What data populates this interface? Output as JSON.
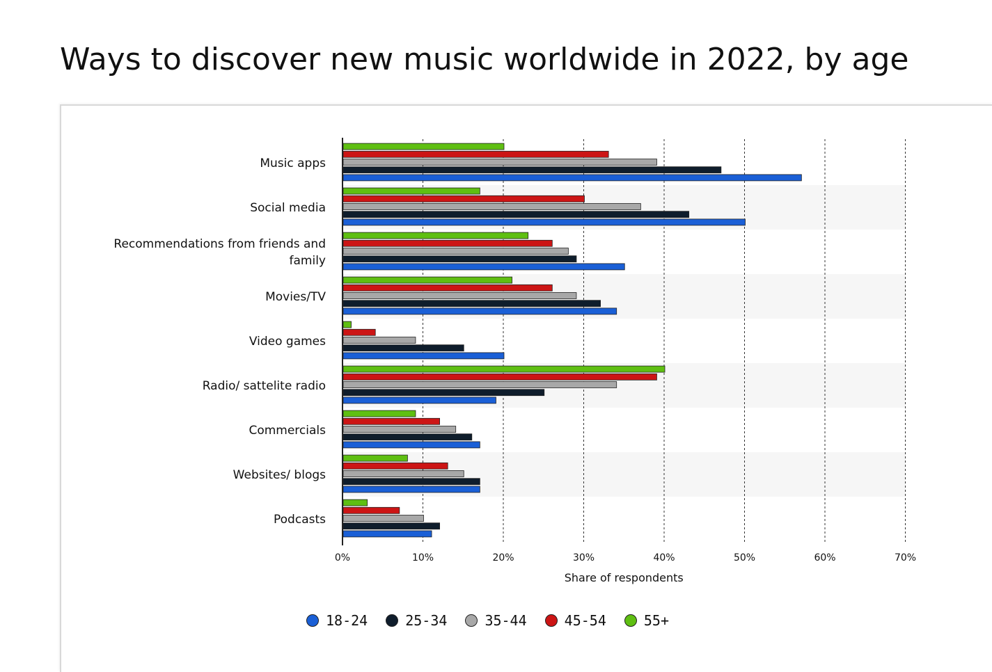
{
  "title": "Ways to discover new music worldwide in 2022, by age",
  "chart_data": {
    "type": "bar",
    "orientation": "horizontal",
    "title": "Ways to discover new music worldwide in 2022, by age",
    "xlabel": "Share of respondents",
    "ylabel": "",
    "xlim": [
      0,
      70
    ],
    "x_ticks": [
      "0%",
      "10%",
      "20%",
      "30%",
      "40%",
      "50%",
      "60%",
      "70%"
    ],
    "grid": "vertical dashed",
    "legend_position": "bottom",
    "categories": [
      "Music apps",
      "Social media",
      "Recommendations from friends and family",
      "Movies/TV",
      "Video games",
      "Radio/ sattelite radio",
      "Commercials",
      "Websites/ blogs",
      "Podcasts"
    ],
    "category_lines": [
      [
        "Music apps"
      ],
      [
        "Social media"
      ],
      [
        "Recommendations from friends and",
        "family"
      ],
      [
        "Movies/TV"
      ],
      [
        "Video games"
      ],
      [
        "Radio/ sattelite radio"
      ],
      [
        "Commercials"
      ],
      [
        "Websites/ blogs"
      ],
      [
        "Podcasts"
      ]
    ],
    "series": [
      {
        "name": "18-24",
        "color": "#1a5fd6",
        "values": [
          57,
          50,
          35,
          34,
          20,
          19,
          17,
          17,
          11
        ]
      },
      {
        "name": "25-34",
        "color": "#0f1d2c",
        "values": [
          47,
          43,
          29,
          32,
          15,
          25,
          16,
          17,
          12
        ]
      },
      {
        "name": "35-44",
        "color": "#a8a8a8",
        "values": [
          39,
          37,
          28,
          29,
          9,
          34,
          14,
          15,
          10
        ]
      },
      {
        "name": "45-54",
        "color": "#cc1515",
        "values": [
          33,
          30,
          26,
          26,
          4,
          39,
          12,
          13,
          7
        ]
      },
      {
        "name": "55+",
        "color": "#5fbf12",
        "values": [
          20,
          17,
          23,
          21,
          1,
          40,
          9,
          8,
          3
        ]
      }
    ]
  }
}
